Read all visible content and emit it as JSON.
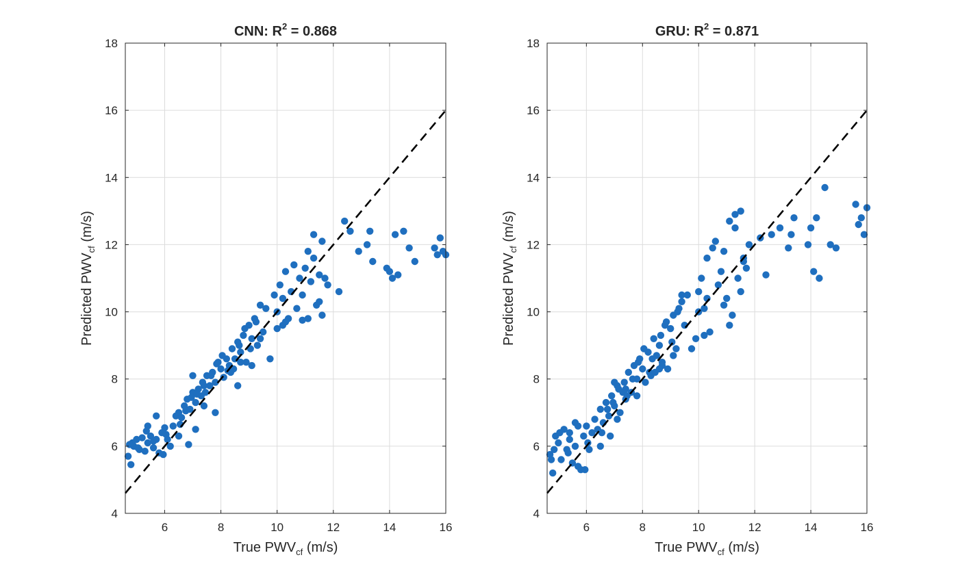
{
  "chart_data": [
    {
      "type": "scatter",
      "title": {
        "model": "CNN",
        "r2_label": "R",
        "r2_exp": "2",
        "eq": "=",
        "value": "0.868"
      },
      "xlabel": {
        "prefix": "True",
        "var": "PWV",
        "sub": "cf",
        "unit": "(m/s)"
      },
      "ylabel": {
        "prefix": "Predicted",
        "var": "PWV",
        "sub": "cf",
        "unit": "(m/s)"
      },
      "xlim": [
        4.6,
        16
      ],
      "ylim": [
        4,
        18
      ],
      "xticks": [
        "6",
        "8",
        "10",
        "12",
        "14",
        "16"
      ],
      "yticks": [
        "4",
        "6",
        "8",
        "10",
        "12",
        "14",
        "16",
        "18"
      ],
      "grid": true,
      "reference_line": {
        "x": [
          4.6,
          16
        ],
        "y": [
          4.6,
          16
        ],
        "style": "dashed",
        "color": "#000000"
      },
      "marker_color": "#1f6fbf",
      "points_x": [
        4.7,
        4.8,
        4.9,
        5.0,
        5.1,
        5.2,
        5.3,
        5.4,
        5.5,
        5.6,
        5.7,
        5.8,
        4.85,
        5.05,
        5.35,
        5.6,
        5.9,
        6.0,
        6.1,
        6.2,
        6.05,
        6.3,
        6.4,
        6.5,
        6.6,
        6.7,
        6.8,
        6.9,
        7.0,
        7.1,
        7.2,
        7.3,
        7.4,
        6.55,
        6.75,
        6.95,
        7.15,
        7.35,
        7.5,
        7.6,
        7.7,
        7.8,
        7.9,
        8.0,
        8.1,
        8.2,
        8.3,
        7.45,
        7.65,
        7.85,
        8.05,
        8.25,
        8.4,
        8.5,
        8.6,
        8.7,
        8.8,
        8.9,
        9.0,
        9.1,
        9.2,
        9.3,
        8.45,
        8.65,
        8.85,
        9.05,
        9.25,
        9.4,
        9.5,
        9.6,
        7.0,
        7.4,
        8.7,
        9.1,
        9.9,
        10.0,
        10.1,
        10.2,
        10.3,
        10.4,
        10.5,
        10.6,
        10.2,
        10.7,
        10.8,
        10.9,
        11.0,
        11.1,
        11.2,
        11.3,
        11.4,
        11.5,
        11.6,
        11.1,
        11.8,
        11.3,
        11.5,
        11.7,
        12.4,
        12.6,
        12.9,
        13.2,
        13.3,
        13.4,
        13.9,
        14.0,
        14.1,
        14.2,
        14.3,
        14.5,
        14.7,
        14.9,
        15.6,
        15.7,
        15.8,
        15.9,
        16.0,
        5.7,
        5.4,
        6.5,
        7.1,
        7.8,
        8.6,
        9.4,
        10.0,
        10.3,
        10.9,
        11.6,
        12.2,
        4.75,
        5.95,
        6.85,
        8.35,
        9.75
      ],
      "points_y": [
        5.7,
        5.45,
        6.0,
        6.2,
        5.9,
        6.25,
        5.85,
        6.1,
        6.3,
        5.95,
        6.2,
        5.8,
        6.1,
        5.95,
        6.45,
        6.15,
        6.4,
        6.55,
        6.2,
        6.0,
        6.35,
        6.6,
        6.9,
        7.0,
        6.85,
        7.2,
        7.4,
        7.1,
        7.6,
        7.3,
        7.7,
        7.5,
        7.2,
        6.65,
        7.05,
        7.45,
        7.55,
        7.9,
        8.1,
        7.8,
        8.2,
        7.9,
        8.5,
        8.3,
        8.05,
        8.6,
        8.4,
        7.6,
        8.1,
        8.45,
        8.7,
        8.25,
        8.9,
        8.6,
        9.1,
        8.8,
        9.3,
        8.5,
        9.6,
        9.2,
        9.8,
        9.0,
        8.3,
        9.0,
        9.5,
        8.9,
        9.7,
        10.2,
        9.4,
        10.1,
        8.1,
        7.8,
        8.5,
        8.4,
        10.5,
        10.0,
        10.8,
        10.4,
        11.2,
        9.8,
        10.6,
        11.4,
        9.6,
        10.1,
        11.0,
        10.5,
        11.3,
        11.8,
        10.9,
        12.3,
        10.2,
        11.1,
        12.1,
        9.8,
        10.8,
        11.6,
        10.3,
        11.0,
        12.7,
        12.4,
        11.8,
        12.0,
        12.4,
        11.5,
        11.3,
        11.2,
        11.0,
        12.3,
        11.1,
        12.4,
        11.9,
        11.5,
        11.9,
        11.7,
        12.2,
        11.8,
        11.7,
        6.9,
        6.6,
        6.3,
        6.5,
        7.0,
        7.8,
        9.2,
        9.5,
        9.7,
        9.75,
        9.9,
        10.6,
        6.05,
        5.75,
        6.05,
        8.2,
        8.6
      ]
    },
    {
      "type": "scatter",
      "title": {
        "model": "GRU",
        "r2_label": "R",
        "r2_exp": "2",
        "eq": "=",
        "value": "0.871"
      },
      "xlabel": {
        "prefix": "True",
        "var": "PWV",
        "sub": "cf",
        "unit": "(m/s)"
      },
      "ylabel": {
        "prefix": "Predicted",
        "var": "PWV",
        "sub": "cf",
        "unit": "(m/s)"
      },
      "xlim": [
        4.6,
        16
      ],
      "ylim": [
        4,
        18
      ],
      "xticks": [
        "6",
        "8",
        "10",
        "12",
        "14",
        "16"
      ],
      "yticks": [
        "4",
        "6",
        "8",
        "10",
        "12",
        "14",
        "16",
        "18"
      ],
      "grid": true,
      "reference_line": {
        "x": [
          4.6,
          16
        ],
        "y": [
          4.6,
          16
        ],
        "style": "dashed",
        "color": "#000000"
      },
      "marker_color": "#1f6fbf",
      "points_x": [
        4.7,
        4.8,
        4.9,
        5.0,
        5.1,
        5.2,
        5.3,
        5.4,
        5.5,
        5.6,
        5.7,
        5.8,
        4.85,
        5.05,
        5.35,
        5.6,
        5.9,
        6.0,
        6.1,
        6.2,
        6.05,
        6.3,
        6.4,
        6.5,
        6.6,
        6.7,
        6.8,
        6.9,
        7.0,
        7.1,
        7.2,
        7.3,
        7.4,
        6.55,
        6.75,
        6.95,
        7.15,
        7.35,
        7.5,
        7.6,
        7.7,
        7.8,
        7.9,
        8.0,
        8.1,
        8.2,
        8.3,
        7.45,
        7.65,
        7.85,
        8.05,
        8.25,
        8.4,
        8.5,
        8.6,
        8.7,
        8.8,
        8.9,
        9.0,
        9.1,
        9.2,
        9.3,
        8.45,
        8.65,
        8.85,
        9.05,
        9.25,
        9.4,
        9.5,
        9.6,
        7.0,
        7.4,
        8.7,
        9.1,
        9.9,
        10.0,
        10.1,
        10.2,
        10.3,
        10.4,
        10.5,
        10.6,
        10.2,
        10.7,
        10.8,
        10.9,
        11.0,
        11.1,
        11.2,
        11.3,
        11.4,
        11.5,
        11.6,
        11.1,
        11.8,
        11.3,
        11.5,
        11.7,
        12.4,
        12.6,
        12.9,
        13.2,
        13.3,
        13.4,
        13.9,
        14.0,
        14.1,
        14.2,
        14.3,
        14.5,
        14.7,
        14.9,
        15.6,
        15.7,
        15.8,
        15.9,
        16.0,
        5.7,
        5.4,
        6.5,
        7.1,
        7.8,
        8.6,
        9.4,
        10.0,
        10.3,
        10.9,
        11.6,
        12.2,
        4.75,
        5.95,
        6.85,
        8.35,
        9.75
      ],
      "points_y": [
        5.75,
        5.2,
        6.3,
        6.1,
        5.6,
        6.5,
        5.9,
        6.2,
        5.5,
        6.7,
        5.4,
        5.3,
        5.9,
        6.4,
        5.8,
        6.0,
        6.3,
        6.6,
        5.9,
        6.4,
        6.1,
        6.8,
        6.5,
        7.1,
        6.7,
        7.3,
        6.9,
        7.5,
        7.2,
        7.8,
        7.0,
        7.6,
        7.4,
        6.4,
        7.1,
        7.3,
        7.7,
        7.9,
        8.2,
        7.6,
        8.4,
        8.0,
        8.6,
        8.3,
        7.9,
        8.8,
        8.1,
        7.5,
        8.0,
        8.5,
        8.9,
        8.2,
        9.2,
        8.7,
        9.0,
        8.5,
        9.6,
        8.3,
        9.5,
        9.9,
        8.9,
        10.1,
        8.2,
        9.3,
        9.7,
        9.1,
        10.0,
        10.3,
        9.6,
        10.5,
        7.9,
        7.7,
        8.4,
        8.7,
        9.2,
        10.6,
        11.0,
        10.1,
        11.6,
        9.4,
        11.9,
        12.1,
        9.3,
        10.8,
        11.2,
        11.8,
        10.4,
        12.7,
        9.9,
        12.5,
        11.0,
        13.0,
        11.6,
        9.6,
        12.0,
        12.9,
        10.6,
        11.3,
        11.1,
        12.3,
        12.5,
        11.9,
        12.3,
        12.8,
        12.0,
        12.5,
        11.2,
        12.8,
        11.0,
        13.7,
        12.0,
        11.9,
        13.2,
        12.6,
        12.8,
        12.3,
        13.1,
        6.6,
        6.4,
        6.0,
        6.8,
        7.5,
        8.3,
        10.5,
        10.0,
        10.4,
        10.2,
        11.5,
        12.2,
        5.6,
        5.3,
        6.3,
        8.6,
        8.9
      ]
    }
  ]
}
